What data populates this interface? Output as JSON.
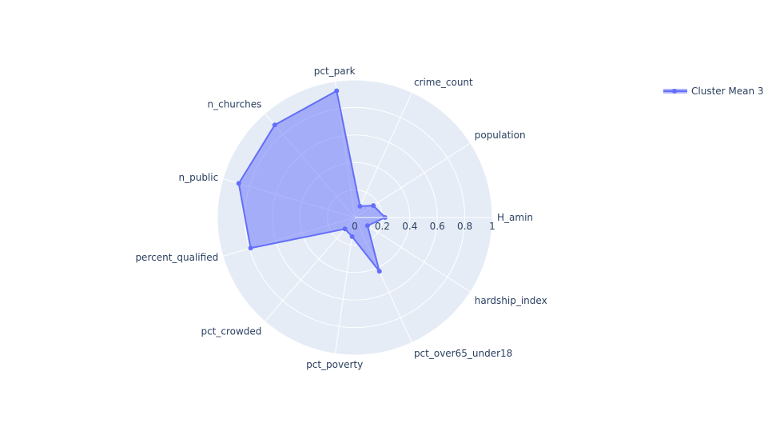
{
  "chart_data": {
    "type": "radar",
    "title": "",
    "categories": [
      "H_amin",
      "population",
      "crime_count",
      "pct_park",
      "n_churches",
      "n_public",
      "percent_qualified",
      "pct_crowded",
      "pct_poverty",
      "pct_over65_under18",
      "hardship_index"
    ],
    "series": [
      {
        "name": "Cluster Mean 3",
        "values": [
          0.22,
          0.16,
          0.09,
          0.93,
          0.89,
          0.88,
          0.79,
          0.11,
          0.14,
          0.43,
          0.11
        ]
      }
    ],
    "radial_range": [
      0,
      1
    ],
    "radial_ticks": [
      "0",
      "0.2",
      "0.4",
      "0.6",
      "0.8",
      "1"
    ],
    "grid": true,
    "legend_position": "top-right",
    "colors": {
      "series": "#636efa",
      "fill": "rgba(99,110,250,0.5)",
      "polar_background": "#e5ecf6",
      "grid": "#ffffff",
      "text": "#2a3f5f"
    }
  }
}
